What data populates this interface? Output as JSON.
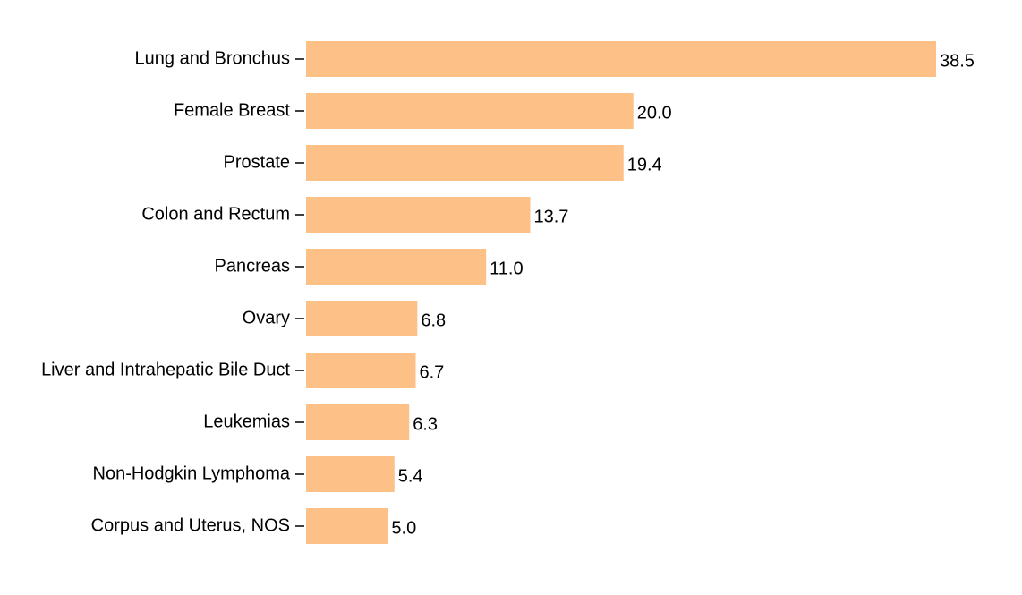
{
  "chart_data": {
    "type": "bar",
    "orientation": "horizontal",
    "categories": [
      "Lung and Bronchus",
      "Female Breast",
      "Prostate",
      "Colon and Rectum",
      "Pancreas",
      "Ovary",
      "Liver and Intrahepatic Bile Duct",
      "Leukemias",
      "Non-Hodgkin Lymphoma",
      "Corpus and Uterus, NOS"
    ],
    "values": [
      38.5,
      20.0,
      19.4,
      13.7,
      11.0,
      6.8,
      6.7,
      6.3,
      5.4,
      5.0
    ],
    "value_labels": [
      "38.5",
      "20.0",
      "19.4",
      "13.7",
      "11.0",
      "6.8",
      "6.7",
      "6.3",
      "5.4",
      "5.0"
    ],
    "xlim": [
      0,
      38.5
    ],
    "grid": false,
    "legend": "none",
    "bar_color": "#fdc086"
  }
}
